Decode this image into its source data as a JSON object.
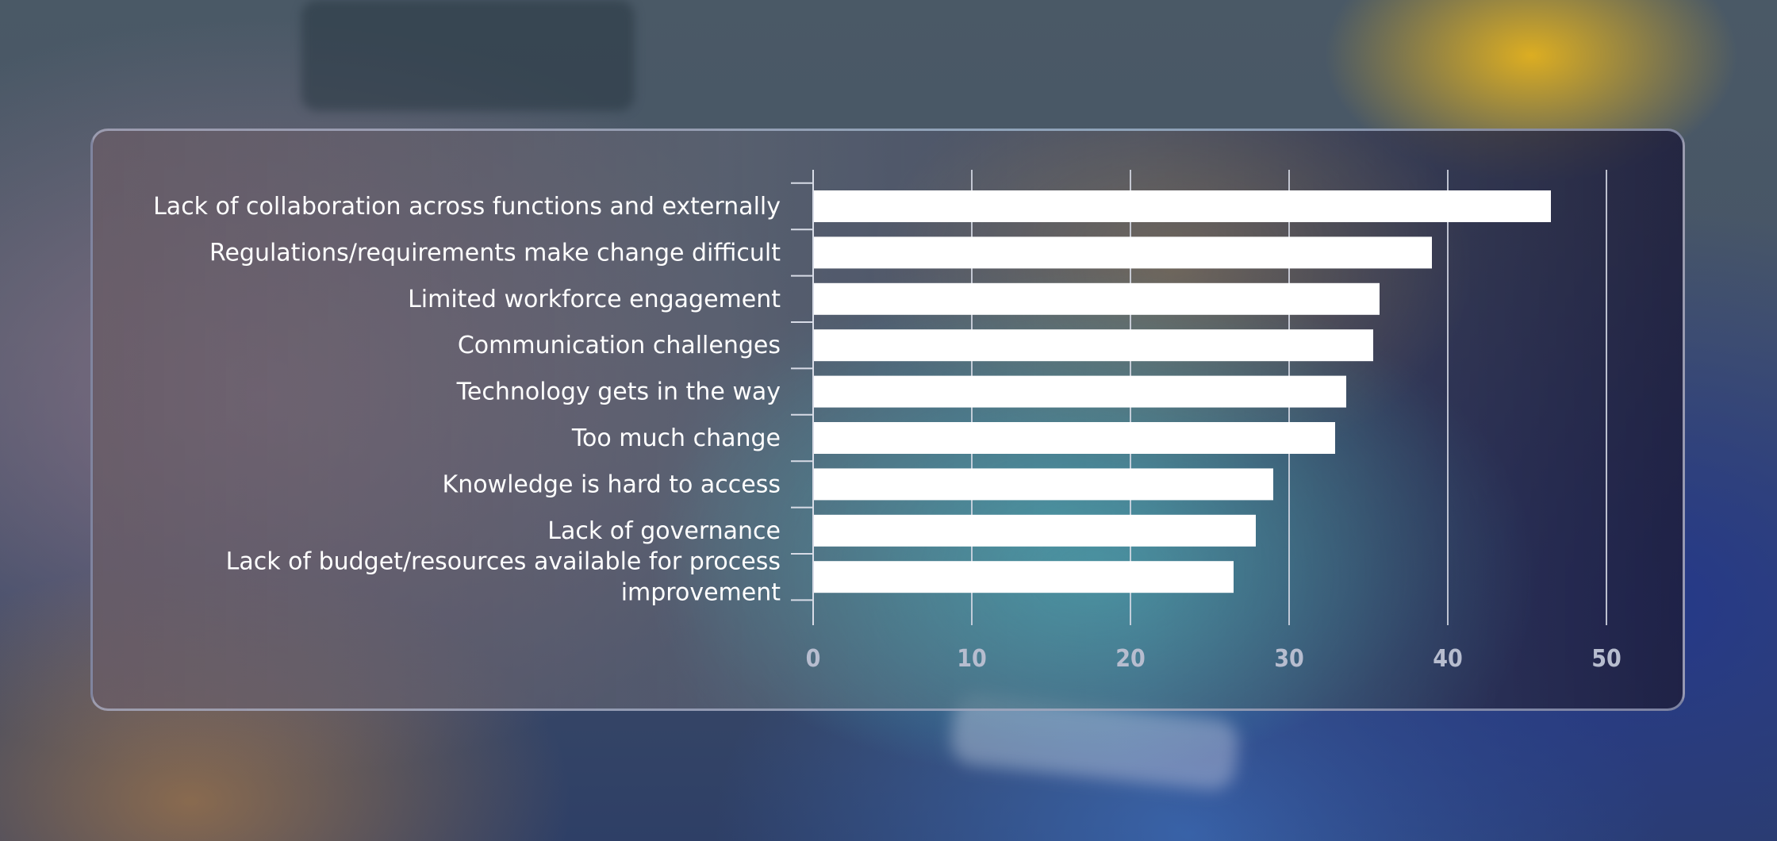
{
  "chart_data": {
    "type": "bar",
    "orientation": "horizontal",
    "title": "",
    "xlabel": "",
    "ylabel": "",
    "categories": [
      [
        "Lack of collaboration across functions and externally"
      ],
      [
        "Regulations/requirements make change difficult"
      ],
      [
        "Limited workforce engagement"
      ],
      [
        "Communication challenges"
      ],
      [
        "Technology gets in the way"
      ],
      [
        "Too much change"
      ],
      [
        "Knowledge is hard to access"
      ],
      [
        "Lack of governance"
      ],
      [
        "Lack of budget/resources available for process",
        "improvement"
      ]
    ],
    "values": [
      46.5,
      39,
      35.7,
      35.3,
      33.6,
      32.9,
      29,
      27.9,
      26.5
    ],
    "xlim": [
      0,
      50
    ],
    "xticks": [
      0,
      10,
      20,
      30,
      40,
      50
    ],
    "grid": true,
    "legend": "none",
    "bar_color": "#ffffff",
    "grid_color": "#d7dbe6",
    "tick_label_color": "#b7bdcf"
  }
}
